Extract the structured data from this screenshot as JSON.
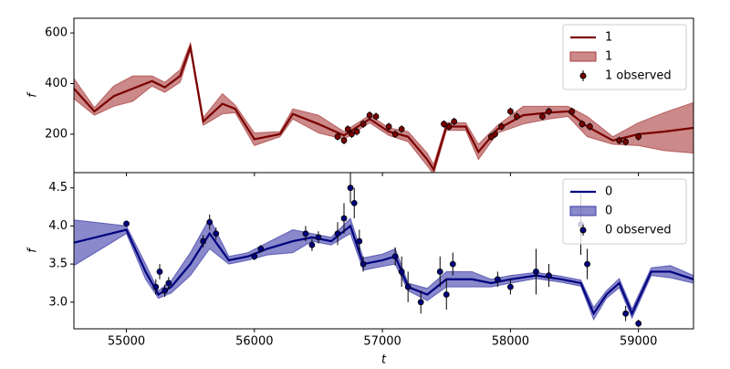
{
  "chart_data": [
    {
      "type": "line",
      "ylabel": "f",
      "legend": "upper right",
      "xlim": [
        54590,
        59430
      ],
      "ylim": [
        48,
        658
      ],
      "yticks": [
        200,
        400,
        600
      ],
      "series": [
        {
          "name": "1",
          "kind": "line",
          "color": "#7a0000",
          "x": [
            54590,
            54750,
            54900,
            55050,
            55200,
            55300,
            55420,
            55500,
            55600,
            55750,
            55850,
            56000,
            56200,
            56300,
            56500,
            56700,
            56900,
            57050,
            57200,
            57350,
            57400,
            57500,
            57650,
            57750,
            57900,
            58100,
            58300,
            58450,
            58600,
            58800,
            59000,
            59200,
            59430
          ],
          "values": [
            380,
            290,
            350,
            380,
            410,
            385,
            430,
            545,
            250,
            320,
            300,
            180,
            200,
            280,
            240,
            195,
            260,
            210,
            190,
            100,
            60,
            230,
            230,
            130,
            220,
            275,
            285,
            290,
            230,
            175,
            200,
            210,
            225
          ]
        },
        {
          "name": "1",
          "kind": "band",
          "color": "#a83a3a",
          "x": [
            54590,
            54750,
            54900,
            55050,
            55200,
            55300,
            55420,
            55500,
            55600,
            55750,
            55850,
            56000,
            56200,
            56300,
            56500,
            56700,
            56900,
            57050,
            57200,
            57350,
            57400,
            57500,
            57650,
            57750,
            57900,
            58100,
            58300,
            58450,
            58600,
            58800,
            59000,
            59200,
            59430
          ],
          "lower": [
            340,
            275,
            310,
            330,
            390,
            365,
            405,
            530,
            235,
            280,
            285,
            155,
            190,
            260,
            205,
            180,
            245,
            195,
            170,
            75,
            40,
            215,
            215,
            100,
            205,
            240,
            260,
            270,
            190,
            160,
            155,
            135,
            125
          ],
          "upper": [
            420,
            305,
            390,
            430,
            430,
            405,
            455,
            560,
            265,
            360,
            315,
            205,
            210,
            300,
            275,
            210,
            275,
            225,
            210,
            125,
            80,
            245,
            245,
            160,
            235,
            310,
            310,
            310,
            270,
            190,
            245,
            285,
            325
          ]
        },
        {
          "name": "1 observed",
          "kind": "errorbar",
          "color": "#7a0000",
          "x": [
            56650,
            56700,
            56730,
            56760,
            56800,
            56850,
            56900,
            56950,
            57050,
            57100,
            57150,
            57480,
            57520,
            57560,
            57850,
            57880,
            57930,
            58000,
            58050,
            58250,
            58300,
            58480,
            58560,
            58620,
            58850,
            58900,
            59000
          ],
          "values": [
            190,
            175,
            220,
            200,
            210,
            240,
            275,
            270,
            230,
            200,
            220,
            240,
            230,
            250,
            190,
            200,
            230,
            290,
            270,
            270,
            290,
            290,
            240,
            230,
            175,
            170,
            190
          ],
          "errors": [
            15,
            15,
            15,
            15,
            15,
            15,
            15,
            15,
            15,
            15,
            15,
            15,
            15,
            15,
            15,
            15,
            15,
            15,
            15,
            15,
            15,
            15,
            15,
            15,
            15,
            15,
            15
          ]
        }
      ]
    },
    {
      "type": "line",
      "ylabel": "f",
      "xlabel": "t",
      "legend": "upper right",
      "xlim": [
        54590,
        59430
      ],
      "xticks": [
        55000,
        56000,
        57000,
        58000,
        59000
      ],
      "ylim": [
        2.65,
        4.7
      ],
      "yticks": [
        {
          "value": 3,
          "label": "3.0"
        },
        3.5,
        {
          "value": 4,
          "label": "4.0"
        },
        4.5
      ],
      "series": [
        {
          "name": "0",
          "kind": "line",
          "color": "#00007f",
          "x": [
            54590,
            55000,
            55150,
            55250,
            55350,
            55500,
            55650,
            55800,
            55950,
            56100,
            56300,
            56450,
            56600,
            56750,
            56850,
            57000,
            57100,
            57200,
            57350,
            57500,
            57700,
            57850,
            58000,
            58200,
            58400,
            58550,
            58650,
            58750,
            58850,
            58950,
            59100,
            59250,
            59430
          ],
          "values": [
            3.78,
            3.95,
            3.4,
            3.1,
            3.2,
            3.5,
            3.9,
            3.55,
            3.6,
            3.7,
            3.8,
            3.85,
            3.8,
            4.0,
            3.5,
            3.55,
            3.6,
            3.2,
            3.1,
            3.3,
            3.3,
            3.25,
            3.3,
            3.35,
            3.3,
            3.25,
            2.85,
            3.1,
            3.25,
            2.85,
            3.4,
            3.4,
            3.3
          ]
        },
        {
          "name": "0",
          "kind": "band",
          "color": "#3a3aa8",
          "x": [
            54590,
            55000,
            55150,
            55250,
            55350,
            55500,
            55650,
            55800,
            55950,
            56100,
            56300,
            56450,
            56600,
            56750,
            56850,
            57000,
            57100,
            57200,
            57350,
            57500,
            57700,
            57850,
            58000,
            58200,
            58400,
            58550,
            58650,
            58750,
            58850,
            58950,
            59100,
            59250,
            59430
          ],
          "lower": [
            3.48,
            3.9,
            3.3,
            3.05,
            3.12,
            3.35,
            3.7,
            3.5,
            3.55,
            3.62,
            3.65,
            3.8,
            3.75,
            3.9,
            3.42,
            3.47,
            3.5,
            3.15,
            3.02,
            3.2,
            3.2,
            3.2,
            3.25,
            3.31,
            3.26,
            3.21,
            2.77,
            3.05,
            3.19,
            2.79,
            3.35,
            3.32,
            3.25
          ],
          "upper": [
            4.08,
            4.0,
            3.5,
            3.15,
            3.28,
            3.65,
            4.1,
            3.6,
            3.65,
            3.78,
            3.95,
            3.9,
            3.85,
            4.1,
            3.58,
            3.63,
            3.7,
            3.25,
            3.18,
            3.4,
            3.4,
            3.3,
            3.35,
            3.39,
            3.34,
            3.29,
            2.93,
            3.15,
            3.31,
            2.91,
            3.45,
            3.48,
            3.35
          ]
        },
        {
          "name": "0 observed",
          "kind": "errorbar",
          "color": "#00007f",
          "x": [
            55000,
            55230,
            55260,
            55300,
            55330,
            55600,
            55650,
            55700,
            56000,
            56050,
            56400,
            56450,
            56500,
            56650,
            56700,
            56750,
            56780,
            56820,
            56850,
            57100,
            57150,
            57200,
            57300,
            57450,
            57500,
            57550,
            57900,
            58000,
            58200,
            58300,
            58550,
            58600,
            58900,
            59000
          ],
          "values": [
            4.03,
            3.2,
            3.4,
            3.15,
            3.25,
            3.8,
            4.05,
            3.9,
            3.6,
            3.7,
            3.9,
            3.75,
            3.85,
            3.9,
            4.1,
            4.5,
            4.3,
            3.8,
            3.5,
            3.6,
            3.4,
            3.2,
            3.0,
            3.4,
            3.1,
            3.5,
            3.3,
            3.2,
            3.4,
            3.35,
            4.02,
            3.5,
            2.85,
            2.72
          ],
          "errors": [
            0.03,
            0.1,
            0.1,
            0.08,
            0.08,
            0.08,
            0.1,
            0.08,
            0.05,
            0.05,
            0.1,
            0.08,
            0.08,
            0.15,
            0.2,
            0.2,
            0.2,
            0.15,
            0.1,
            0.12,
            0.2,
            0.2,
            0.15,
            0.2,
            0.2,
            0.15,
            0.1,
            0.1,
            0.3,
            0.15,
            0.4,
            0.2,
            0.1,
            0.05
          ]
        }
      ]
    }
  ]
}
